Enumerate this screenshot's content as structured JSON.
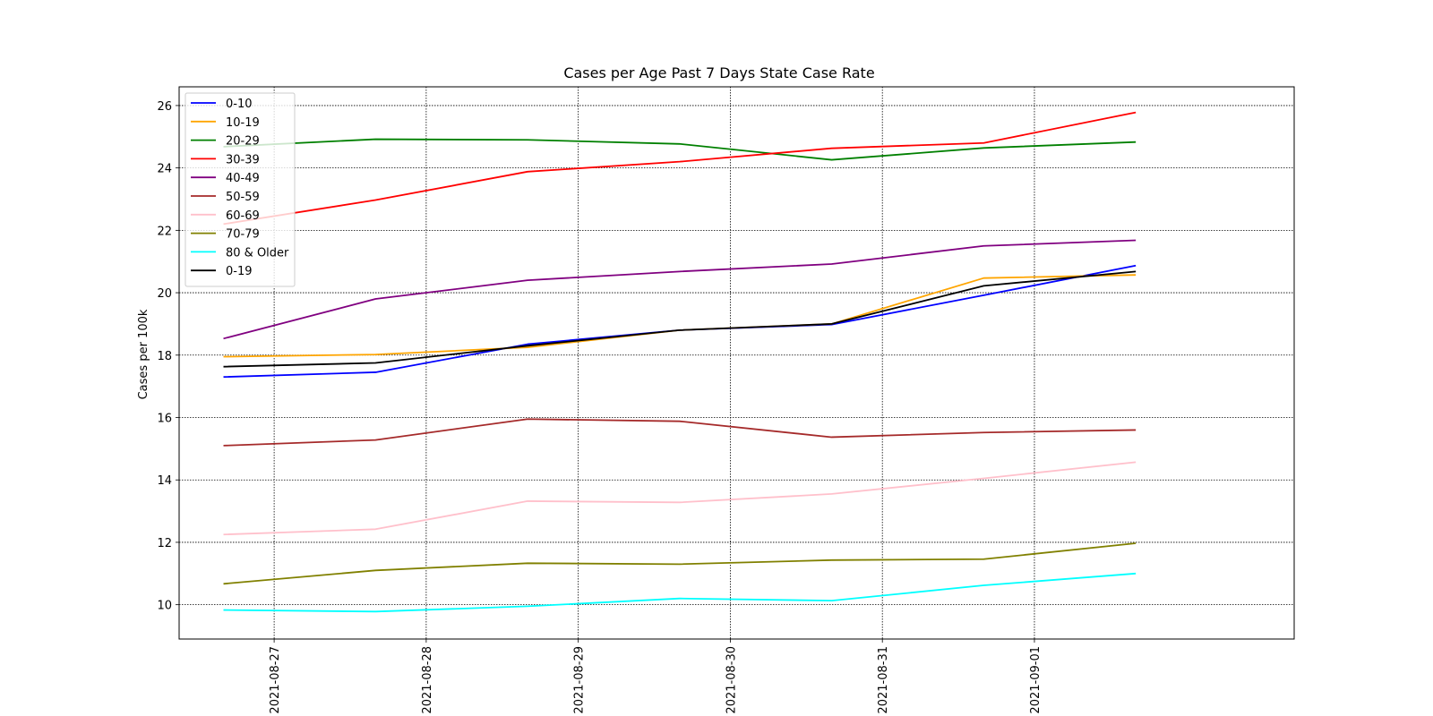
{
  "chart_data": {
    "type": "line",
    "title": "Cases per Age Past 7 Days State Case Rate",
    "xlabel": "",
    "ylabel": "Cases per 100k",
    "ylim": [
      8.9,
      26.6
    ],
    "xlim": [
      "2021-08-26 09:00",
      "2021-09-02 17:00"
    ],
    "x": [
      "2021-08-26 16:00",
      "2021-08-27 16:00",
      "2021-08-28 16:00",
      "2021-08-29 16:00",
      "2021-08-30 16:00",
      "2021-08-31 16:00",
      "2021-09-01 16:00"
    ],
    "x_ticks": [
      "2021-08-27",
      "2021-08-28",
      "2021-08-29",
      "2021-08-30",
      "2021-08-31",
      "2021-09-01"
    ],
    "y_ticks": [
      10,
      12,
      14,
      16,
      18,
      20,
      22,
      24,
      26
    ],
    "grid": true,
    "legend_position": "top-left",
    "series": [
      {
        "name": "0-10",
        "color": "#0000ff",
        "values": [
          17.3,
          17.45,
          18.35,
          18.8,
          18.98,
          19.92,
          20.87
        ]
      },
      {
        "name": "10-19",
        "color": "#ffa500",
        "values": [
          17.95,
          18.02,
          18.25,
          18.8,
          19.0,
          20.47,
          20.57
        ]
      },
      {
        "name": "20-29",
        "color": "#008000",
        "values": [
          24.68,
          24.92,
          24.9,
          24.77,
          24.26,
          24.64,
          24.83
        ]
      },
      {
        "name": "30-39",
        "color": "#ff0000",
        "values": [
          22.2,
          22.97,
          23.88,
          24.2,
          24.63,
          24.8,
          25.78
        ]
      },
      {
        "name": "40-49",
        "color": "#800080",
        "values": [
          18.53,
          19.8,
          20.4,
          20.68,
          20.92,
          21.5,
          21.68
        ]
      },
      {
        "name": "50-59",
        "color": "#a52a2a",
        "values": [
          15.1,
          15.28,
          15.95,
          15.88,
          15.37,
          15.52,
          15.6
        ]
      },
      {
        "name": "60-69",
        "color": "#ffc0cb",
        "values": [
          12.25,
          12.42,
          13.32,
          13.28,
          13.55,
          14.05,
          14.57
        ]
      },
      {
        "name": "70-79",
        "color": "#808000",
        "values": [
          10.67,
          11.1,
          11.33,
          11.3,
          11.43,
          11.46,
          11.97
        ]
      },
      {
        "name": "80 & Older",
        "color": "#00ffff",
        "values": [
          9.83,
          9.78,
          9.95,
          10.2,
          10.13,
          10.62,
          11.0
        ]
      },
      {
        "name": "0-19",
        "color": "#000000",
        "values": [
          17.63,
          17.75,
          18.3,
          18.8,
          19.0,
          20.22,
          20.68
        ]
      }
    ]
  }
}
